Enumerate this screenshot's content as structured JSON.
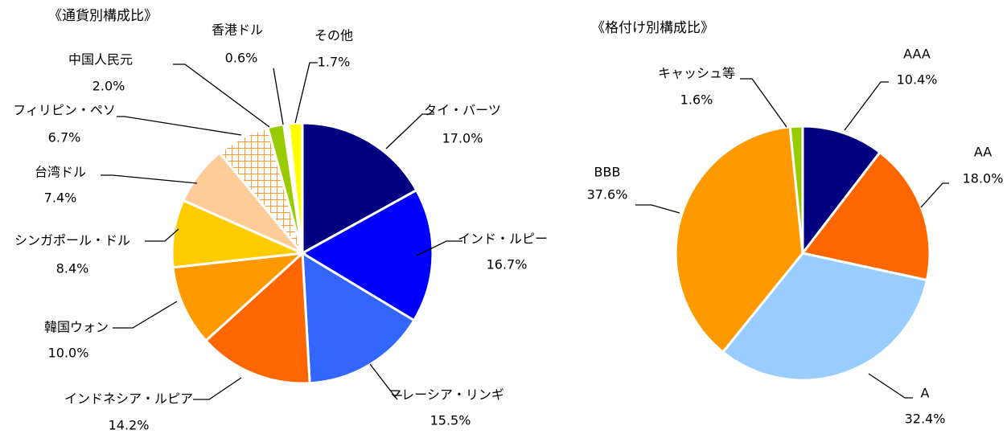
{
  "chart_data": [
    {
      "type": "pie",
      "title": "《通貨別構成比》",
      "categories": [
        "タイ・バーツ",
        "インド・ルピー",
        "マレーシア・リンギ",
        "インドネシア・ルピア",
        "韓国ウォン",
        "シンガポール・ドル",
        "台湾ドル",
        "フィリピン・ペソ",
        "中国人民元",
        "香港ドル",
        "その他"
      ],
      "values": [
        17.0,
        16.7,
        15.5,
        14.2,
        10.0,
        8.4,
        7.4,
        6.7,
        2.0,
        0.6,
        1.7
      ],
      "value_labels": [
        "17.0%",
        "16.7%",
        "15.5%",
        "14.2%",
        "10.0%",
        "8.4%",
        "7.4%",
        "6.7%",
        "2.0%",
        "0.6%",
        "1.7%"
      ],
      "colors": [
        "#000080",
        "#0000ff",
        "#3366ff",
        "#ff6600",
        "#ff9900",
        "#ffcc00",
        "#ffcc99",
        "hatch",
        "#99cc00",
        "#ffffff",
        "#ffff00"
      ]
    },
    {
      "type": "pie",
      "title": "《格付け別構成比》",
      "categories": [
        "AAA",
        "AA",
        "A",
        "BBB",
        "キャッシュ等"
      ],
      "values": [
        10.4,
        18.0,
        32.4,
        37.6,
        1.6
      ],
      "value_labels": [
        "10.4%",
        "18.0%",
        "32.4%",
        "37.6%",
        "1.6%"
      ],
      "colors": [
        "#000080",
        "#ff6600",
        "#99ccff",
        "#ff9900",
        "#99cc00"
      ]
    }
  ]
}
